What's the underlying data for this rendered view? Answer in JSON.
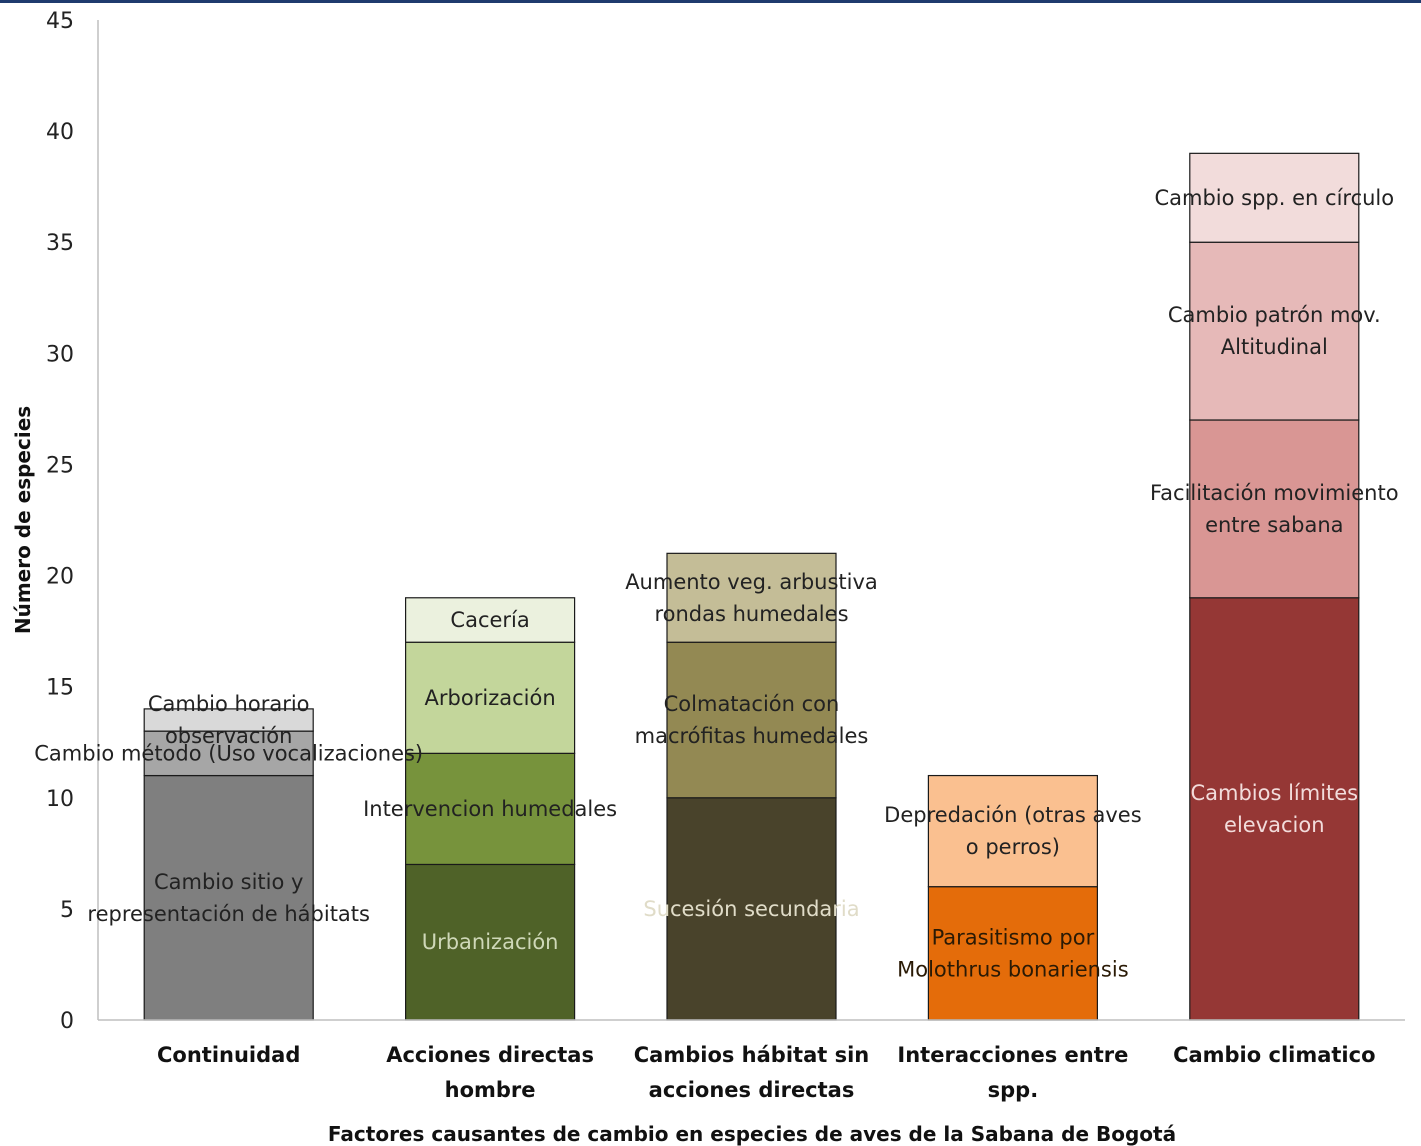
{
  "chart_data": {
    "type": "bar",
    "stacked": true,
    "title": "",
    "xlabel": "Factores causantes de cambio en especies de aves de la Sabana de Bogotá",
    "ylabel": "Número de especies",
    "ylim": [
      0,
      45
    ],
    "yticks": [
      0,
      5,
      10,
      15,
      20,
      25,
      30,
      35,
      40,
      45
    ],
    "grid": false,
    "legend": "none",
    "categories": [
      {
        "label": [
          "Continuidad"
        ],
        "segments": [
          {
            "name": [
              "Cambio sitio y",
              "representación de hábitats"
            ],
            "value": 11,
            "color": "#7f7f7f",
            "text_color": "#222222"
          },
          {
            "name": [
              "Cambio método (Uso vocalizaciones)"
            ],
            "value": 2,
            "color": "#a6a6a6",
            "text_color": "#222222"
          },
          {
            "name": [
              "Cambio horario",
              "observación"
            ],
            "value": 1,
            "color": "#d9d9d9",
            "text_color": "#222222"
          }
        ]
      },
      {
        "label": [
          "Acciones directas",
          "hombre"
        ],
        "segments": [
          {
            "name": [
              "Urbanización"
            ],
            "value": 7,
            "color": "#4f6228",
            "text_color": "#cfd8b8"
          },
          {
            "name": [
              "Intervencion humedales"
            ],
            "value": 5,
            "color": "#77933c",
            "text_color": "#222222"
          },
          {
            "name": [
              "Arborización"
            ],
            "value": 5,
            "color": "#c3d69b",
            "text_color": "#222222"
          },
          {
            "name": [
              "Cacería"
            ],
            "value": 2,
            "color": "#ebf1de",
            "text_color": "#222222"
          }
        ]
      },
      {
        "label": [
          "Cambios hábitat sin",
          "acciones directas"
        ],
        "segments": [
          {
            "name": [
              "Sucesión secundaria"
            ],
            "value": 10,
            "color": "#49432b",
            "text_color": "#e0dcc8"
          },
          {
            "name": [
              "Colmatación con",
              "macrófitas humedales"
            ],
            "value": 7,
            "color": "#938953",
            "text_color": "#222222"
          },
          {
            "name": [
              "Aumento veg. arbustiva",
              "rondas humedales"
            ],
            "value": 4,
            "color": "#c4bd97",
            "text_color": "#222222"
          }
        ]
      },
      {
        "label": [
          "Interacciones entre",
          "spp."
        ],
        "segments": [
          {
            "name": [
              "Parasitismo por",
              "Molothrus bonariensis"
            ],
            "value": 6,
            "color": "#e46c0a",
            "text_color": "#2a1a05"
          },
          {
            "name": [
              "Depredación (otras aves",
              "o perros)"
            ],
            "value": 5,
            "color": "#fac090",
            "text_color": "#222222"
          }
        ]
      },
      {
        "label": [
          "Cambio climatico"
        ],
        "segments": [
          {
            "name": [
              "Cambios límites",
              "elevacion"
            ],
            "value": 19,
            "color": "#953735",
            "text_color": "#f2dcdb"
          },
          {
            "name": [
              "Facilitación movimiento",
              "entre sabana"
            ],
            "value": 8,
            "color": "#d99694",
            "text_color": "#222222"
          },
          {
            "name": [
              "Cambio patrón mov.",
              "Altitudinal"
            ],
            "value": 8,
            "color": "#e6b9b8",
            "text_color": "#222222"
          },
          {
            "name": [
              "Cambio spp. en círculo"
            ],
            "value": 4,
            "color": "#f2dcdb",
            "text_color": "#222222"
          }
        ]
      }
    ]
  }
}
